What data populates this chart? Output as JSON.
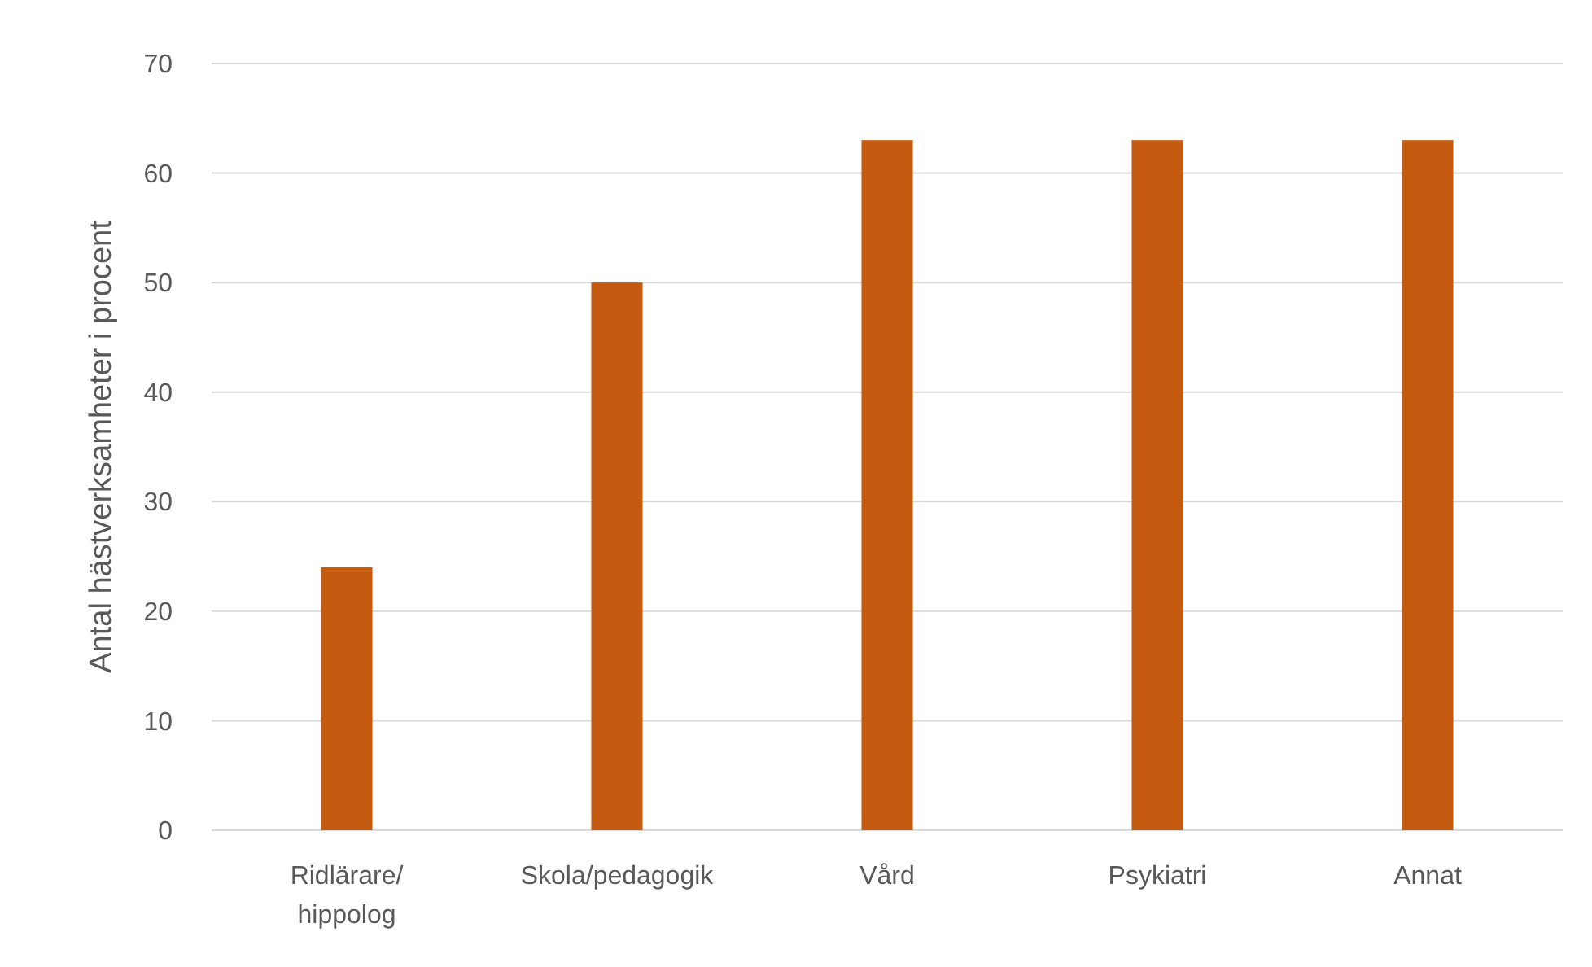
{
  "chart_data": {
    "type": "bar",
    "ylabel": "Antal hästverksamheter i procent",
    "categories": [
      "Ridlärare/hippolog",
      "Skola/pedagogik",
      "Vård",
      "Psykiatri",
      "Annat"
    ],
    "values": [
      24,
      50,
      63,
      63,
      63
    ],
    "color": "#c55a11",
    "ylim": [
      0,
      70
    ],
    "yticks": [
      0,
      10,
      20,
      30,
      40,
      50,
      60,
      70
    ],
    "grid": "y"
  }
}
